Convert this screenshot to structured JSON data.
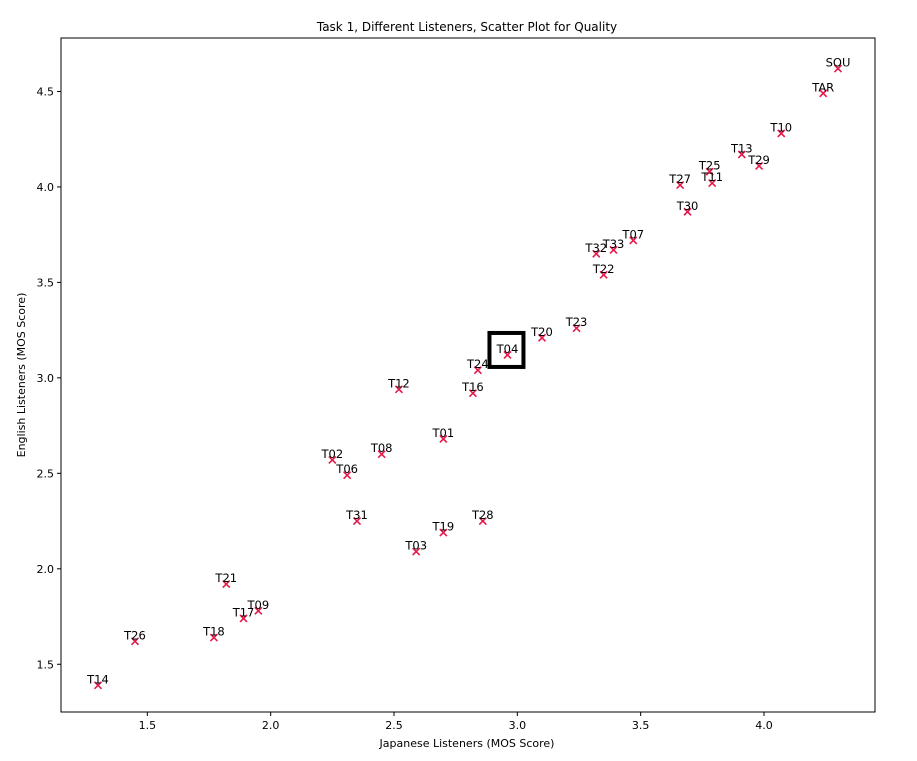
{
  "chart_data": {
    "type": "scatter",
    "title": "Task 1, Different Listeners, Scatter Plot for Quality",
    "xlabel": "Japanese Listeners (MOS Score)",
    "ylabel": "English Listeners (MOS Score)",
    "xlim": [
      1.15,
      4.45
    ],
    "ylim": [
      1.25,
      4.78
    ],
    "xticks": [
      1.5,
      2.0,
      2.5,
      3.0,
      3.5,
      4.0
    ],
    "yticks": [
      1.5,
      2.0,
      2.5,
      3.0,
      3.5,
      4.0,
      4.5
    ],
    "xtick_labels": [
      "1.5",
      "2.0",
      "2.5",
      "3.0",
      "3.5",
      "4.0"
    ],
    "ytick_labels": [
      "1.5",
      "2.0",
      "2.5",
      "3.0",
      "3.5",
      "4.0",
      "4.5"
    ],
    "grid": false,
    "marker": "x",
    "marker_color": "#e6194b",
    "highlight_color": "#000000",
    "highlight": "T04",
    "points": [
      {
        "label": "SOU",
        "x": 4.3,
        "y": 4.62
      },
      {
        "label": "TAR",
        "x": 4.24,
        "y": 4.49
      },
      {
        "label": "T10",
        "x": 4.07,
        "y": 4.28
      },
      {
        "label": "T13",
        "x": 3.91,
        "y": 4.17
      },
      {
        "label": "T29",
        "x": 3.98,
        "y": 4.11
      },
      {
        "label": "T25",
        "x": 3.78,
        "y": 4.08
      },
      {
        "label": "T11",
        "x": 3.79,
        "y": 4.02
      },
      {
        "label": "T27",
        "x": 3.66,
        "y": 4.01
      },
      {
        "label": "T30",
        "x": 3.69,
        "y": 3.87
      },
      {
        "label": "T07",
        "x": 3.47,
        "y": 3.72
      },
      {
        "label": "T33",
        "x": 3.39,
        "y": 3.67
      },
      {
        "label": "T32",
        "x": 3.32,
        "y": 3.65
      },
      {
        "label": "T22",
        "x": 3.35,
        "y": 3.54
      },
      {
        "label": "T23",
        "x": 3.24,
        "y": 3.26
      },
      {
        "label": "T20",
        "x": 3.1,
        "y": 3.21
      },
      {
        "label": "T04",
        "x": 2.96,
        "y": 3.12
      },
      {
        "label": "T24",
        "x": 2.84,
        "y": 3.04
      },
      {
        "label": "T16",
        "x": 2.82,
        "y": 2.92
      },
      {
        "label": "T12",
        "x": 2.52,
        "y": 2.94
      },
      {
        "label": "T01",
        "x": 2.7,
        "y": 2.68
      },
      {
        "label": "T08",
        "x": 2.45,
        "y": 2.6
      },
      {
        "label": "T02",
        "x": 2.25,
        "y": 2.57
      },
      {
        "label": "T06",
        "x": 2.31,
        "y": 2.49
      },
      {
        "label": "T31",
        "x": 2.35,
        "y": 2.25
      },
      {
        "label": "T28",
        "x": 2.86,
        "y": 2.25
      },
      {
        "label": "T19",
        "x": 2.7,
        "y": 2.19
      },
      {
        "label": "T03",
        "x": 2.59,
        "y": 2.09
      },
      {
        "label": "T21",
        "x": 1.82,
        "y": 1.92
      },
      {
        "label": "T09",
        "x": 1.95,
        "y": 1.78
      },
      {
        "label": "T17",
        "x": 1.89,
        "y": 1.74
      },
      {
        "label": "T18",
        "x": 1.77,
        "y": 1.64
      },
      {
        "label": "T26",
        "x": 1.45,
        "y": 1.62
      },
      {
        "label": "T14",
        "x": 1.3,
        "y": 1.39
      }
    ]
  }
}
